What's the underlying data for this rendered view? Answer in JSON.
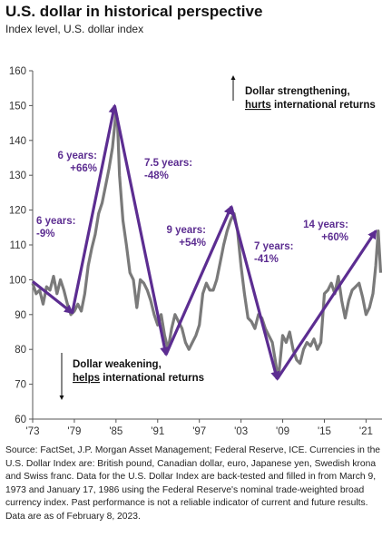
{
  "title": "U.S. dollar in historical perspective",
  "subtitle": "Index level, U.S. dollar index",
  "source_text": "Source: FactSet, J.P. Morgan Asset Management; Federal Reserve, ICE. Currencies in the U.S. Dollar Index are: British pound, Canadian dollar, euro, Japanese yen, Swedish krona and Swiss franc. Data for the U.S. Dollar Index are back-tested and filled in from March 9, 1973 and January 17, 1986 using the Federal Reserve's nominal trade-weighted broad currency index. Past performance is not a reliable indicator of current and future results. Data are as of February 8, 2023.",
  "colors": {
    "series": "#7a7a7a",
    "trend": "#5c2d91",
    "axis": "#555555"
  },
  "chart_data": {
    "type": "line",
    "title": "U.S. dollar in historical perspective",
    "ylabel": "Index level, U.S. dollar index",
    "xlim": [
      1973.0,
      2023.3
    ],
    "ylim": [
      60,
      160
    ],
    "yticks": [
      60,
      70,
      80,
      90,
      100,
      110,
      120,
      130,
      140,
      150,
      160
    ],
    "xticks": [
      {
        "value": 1973,
        "label": "'73"
      },
      {
        "value": 1979,
        "label": "'79"
      },
      {
        "value": 1985,
        "label": "'85"
      },
      {
        "value": 1991,
        "label": "'91"
      },
      {
        "value": 1997,
        "label": "'97"
      },
      {
        "value": 2003,
        "label": "'03"
      },
      {
        "value": 2009,
        "label": "'09"
      },
      {
        "value": 2015,
        "label": "'15"
      },
      {
        "value": 2021,
        "label": "'21"
      }
    ],
    "grid": false,
    "legend": "none",
    "series": [
      {
        "x": [
          1973.0,
          1973.5,
          1974.0,
          1974.5,
          1975.0,
          1975.5,
          1976.0,
          1976.5,
          1977.0,
          1977.5,
          1978.0,
          1978.5,
          1979.0,
          1979.5,
          1980.0,
          1980.5,
          1981.0,
          1981.5,
          1982.0,
          1982.5,
          1983.0,
          1983.5,
          1984.0,
          1984.5,
          1985.0,
          1985.2,
          1985.5,
          1986.0,
          1986.5,
          1987.0,
          1987.5,
          1988.0,
          1988.5,
          1989.0,
          1989.5,
          1990.0,
          1990.5,
          1991.0,
          1991.5,
          1992.0,
          1992.5,
          1993.0,
          1993.5,
          1994.0,
          1994.5,
          1995.0,
          1995.5,
          1996.0,
          1996.5,
          1997.0,
          1997.5,
          1998.0,
          1998.5,
          1999.0,
          1999.5,
          2000.0,
          2000.5,
          2001.0,
          2001.5,
          2002.0,
          2002.5,
          2003.0,
          2003.5,
          2004.0,
          2004.5,
          2005.0,
          2005.5,
          2006.0,
          2006.5,
          2007.0,
          2007.5,
          2008.0,
          2008.3,
          2008.5,
          2009.0,
          2009.5,
          2010.0,
          2010.5,
          2011.0,
          2011.5,
          2012.0,
          2012.5,
          2013.0,
          2013.5,
          2014.0,
          2014.5,
          2015.0,
          2015.5,
          2016.0,
          2016.5,
          2017.0,
          2017.5,
          2018.0,
          2018.5,
          2019.0,
          2019.5,
          2020.0,
          2020.5,
          2021.0,
          2021.5,
          2022.0,
          2022.4,
          2022.75,
          2023.1
        ],
        "y": [
          99,
          96,
          97,
          93,
          98,
          97,
          101,
          96,
          100,
          97,
          93,
          90,
          91,
          93,
          91,
          96,
          104,
          109,
          113,
          119,
          122,
          127,
          132,
          138,
          148,
          146,
          130,
          117,
          110,
          102,
          100,
          92,
          100,
          99,
          97,
          94,
          90,
          87,
          90,
          84,
          80,
          86,
          90,
          88,
          86,
          82,
          80,
          82,
          84,
          87,
          96,
          99,
          97,
          97,
          100,
          105,
          110,
          114,
          117,
          119,
          114,
          104,
          96,
          89,
          88,
          86,
          90,
          89,
          86,
          84,
          82,
          76,
          72,
          74,
          84,
          82,
          85,
          80,
          77,
          76,
          80,
          82,
          81,
          83,
          80,
          82,
          96,
          97,
          99,
          96,
          101,
          94,
          89,
          94,
          97,
          98,
          99,
          95,
          90,
          92,
          96,
          104,
          114,
          102
        ]
      }
    ],
    "trend_lines": [
      {
        "start": [
          1973.0,
          99.5
        ],
        "end": [
          1978.7,
          90.5
        ],
        "label_lines": [
          "6 years:",
          "-9%"
        ]
      },
      {
        "start": [
          1978.7,
          90.5
        ],
        "end": [
          1984.8,
          150.0
        ],
        "label_lines": [
          "6 years:",
          "+66%"
        ]
      },
      {
        "start": [
          1984.8,
          150.0
        ],
        "end": [
          1992.2,
          78.5
        ],
        "label_lines": [
          "7.5 years:",
          "-48%"
        ]
      },
      {
        "start": [
          1992.2,
          78.5
        ],
        "end": [
          2001.6,
          121.0
        ],
        "label_lines": [
          "9 years:",
          "+54%"
        ]
      },
      {
        "start": [
          2001.6,
          121.0
        ],
        "end": [
          2008.2,
          71.5
        ],
        "label_lines": [
          "7 years:",
          "-41%"
        ]
      },
      {
        "start": [
          2008.2,
          71.5
        ],
        "end": [
          2022.4,
          114.0
        ],
        "label_lines": [
          "14 years:",
          "+60%"
        ]
      }
    ],
    "annotations": [
      {
        "lines": [
          "Dollar strengthening,",
          "hurts international returns"
        ],
        "underlined_word": "hurts",
        "arrow": "up"
      },
      {
        "lines": [
          "Dollar weakening,",
          "helps international returns"
        ],
        "underlined_word": "helps",
        "arrow": "down"
      }
    ]
  }
}
